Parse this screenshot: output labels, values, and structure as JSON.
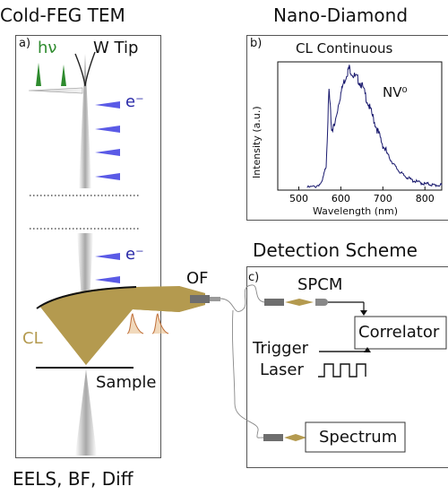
{
  "panels": {
    "a": {
      "heading": "Cold-FEG TEM",
      "letter": "a)",
      "hv_label": "hν",
      "tip_label": "W Tip",
      "electron_label_top": "e⁻",
      "electron_label_bottom": "e⁻",
      "cl_label": "CL",
      "sample_label": "Sample",
      "footer": "EELS, BF, Diff"
    },
    "b": {
      "heading": "Nano-Diamond",
      "letter": "b)",
      "plot_title": "CL Continuous",
      "annotation": "NV⁰"
    },
    "c": {
      "heading": "Detection Scheme",
      "letter": "c)",
      "of_label": "OF",
      "spcm_label": "SPCM",
      "correlator_label": "Correlator",
      "trigger_label": "Trigger",
      "laser_label": "Laser",
      "spectrum_label": "Spectrum"
    }
  },
  "colors": {
    "cl_gold": "#b49a4f",
    "electron_blue": "#5a5ae6",
    "photon_green": "#2e8b2e",
    "spectrum_line": "#1a1a6e",
    "fiber_gray": "#6e6e6e"
  },
  "chart_data": {
    "type": "line",
    "title": "CL Continuous",
    "xlabel": "Wavelength (nm)",
    "ylabel": "Intensity (a.u.)",
    "xlim": [
      450,
      840
    ],
    "ylim": [
      0,
      1.05
    ],
    "xticks": [
      500,
      600,
      700,
      800
    ],
    "x": [
      520,
      540,
      555,
      565,
      572,
      578,
      585,
      595,
      605,
      615,
      620,
      630,
      640,
      650,
      660,
      670,
      680,
      690,
      700,
      710,
      720,
      730,
      740,
      750,
      760,
      770,
      780,
      790,
      800,
      810,
      820,
      830,
      840
    ],
    "series": [
      {
        "values": [
          0.02,
          0.03,
          0.06,
          0.2,
          0.82,
          0.5,
          0.52,
          0.72,
          0.86,
          0.96,
          1.0,
          0.94,
          0.91,
          0.86,
          0.76,
          0.66,
          0.56,
          0.46,
          0.37,
          0.3,
          0.24,
          0.19,
          0.15,
          0.12,
          0.1,
          0.08,
          0.07,
          0.06,
          0.05,
          0.05,
          0.04,
          0.04,
          0.04
        ]
      }
    ]
  }
}
